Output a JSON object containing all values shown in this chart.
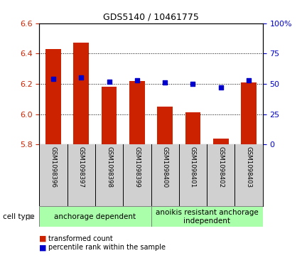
{
  "title": "GDS5140 / 10461775",
  "samples": [
    "GSM1098396",
    "GSM1098397",
    "GSM1098398",
    "GSM1098399",
    "GSM1098400",
    "GSM1098401",
    "GSM1098402",
    "GSM1098403"
  ],
  "bar_values": [
    6.43,
    6.47,
    6.18,
    6.22,
    6.05,
    6.01,
    5.84,
    6.21
  ],
  "bar_base": 5.8,
  "percentile_values": [
    54,
    55,
    52,
    53,
    51,
    50,
    47,
    53
  ],
  "ylim_left": [
    5.8,
    6.6
  ],
  "ylim_right": [
    0,
    100
  ],
  "yticks_left": [
    5.8,
    6.0,
    6.2,
    6.4,
    6.6
  ],
  "yticks_right": [
    0,
    25,
    50,
    75,
    100
  ],
  "ytick_labels_right": [
    "0",
    "25",
    "50",
    "75",
    "100%"
  ],
  "bar_color": "#cc2200",
  "dot_color": "#0000cc",
  "bg_color_samples": "#d0d0d0",
  "bg_color_group": "#aaffaa",
  "cell_type_label": "cell type",
  "group1_label": "anchorage dependent",
  "group2_label": "anoikis resistant anchorage\nindependent",
  "legend_bar_label": "transformed count",
  "legend_dot_label": "percentile rank within the sample",
  "bar_width": 0.55
}
